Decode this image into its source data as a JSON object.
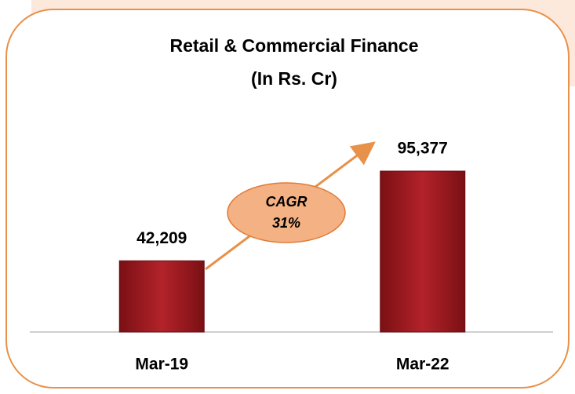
{
  "chart_data": {
    "type": "bar",
    "title": [
      "Retail & Commercial Finance",
      "(In Rs. Cr)"
    ],
    "categories": [
      "Mar-19",
      "Mar-22"
    ],
    "values": [
      42209,
      95377
    ],
    "value_labels": [
      "42,209",
      "95,377"
    ],
    "color": "#a51d24",
    "annotation": [
      "CAGR",
      "31%"
    ]
  }
}
